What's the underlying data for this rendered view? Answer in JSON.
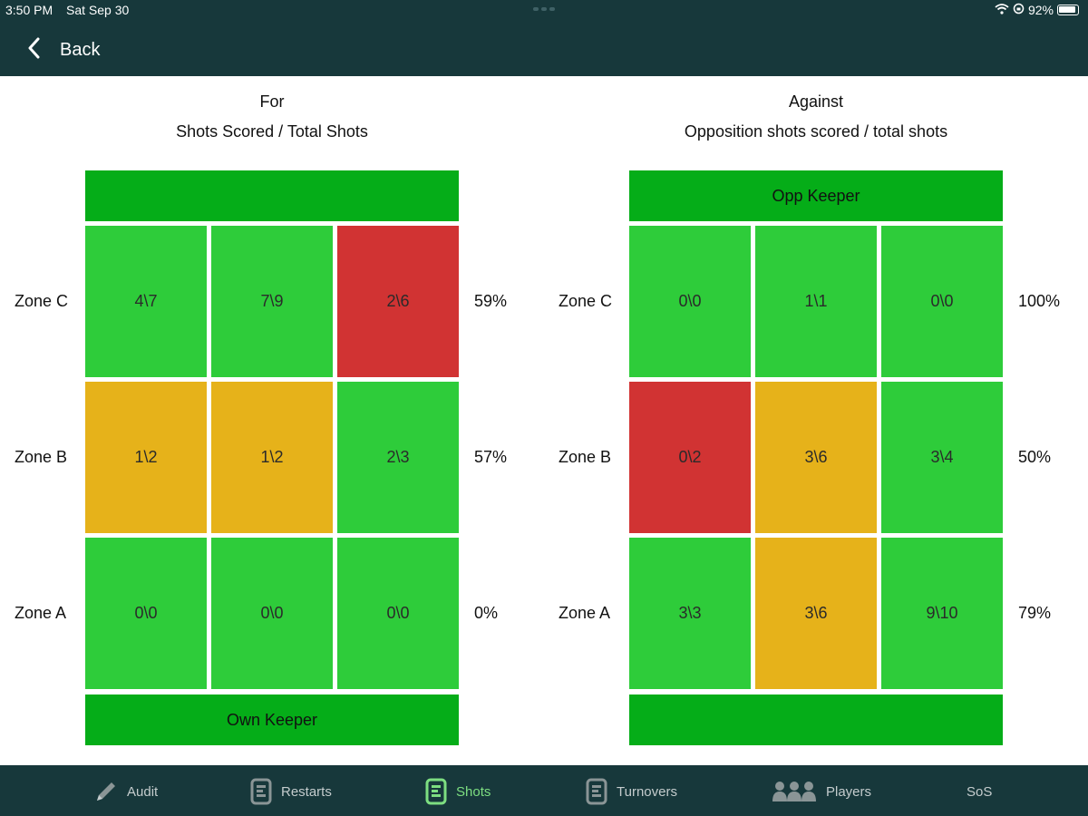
{
  "status": {
    "time": "3:50 PM",
    "date": "Sat Sep 30",
    "battery": "92%"
  },
  "nav": {
    "back_label": "Back"
  },
  "for_panel": {
    "title_line1": "For",
    "title_line2": "Shots Scored / Total Shots",
    "top_keeper": "",
    "bottom_keeper": "Own Keeper",
    "rows": [
      {
        "zone": "Zone C",
        "pct": "59%",
        "cells": [
          "4\\7",
          "7\\9",
          "2\\6"
        ],
        "colors": [
          "green",
          "green",
          "red"
        ]
      },
      {
        "zone": "Zone B",
        "pct": "57%",
        "cells": [
          "1\\2",
          "1\\2",
          "2\\3"
        ],
        "colors": [
          "amber",
          "amber",
          "green"
        ]
      },
      {
        "zone": "Zone A",
        "pct": "0%",
        "cells": [
          "0\\0",
          "0\\0",
          "0\\0"
        ],
        "colors": [
          "green",
          "green",
          "green"
        ]
      }
    ]
  },
  "against_panel": {
    "title_line1": "Against",
    "title_line2": "Opposition shots scored / total shots",
    "top_keeper": "Opp Keeper",
    "bottom_keeper": "",
    "rows": [
      {
        "zone": "Zone C",
        "pct": "100%",
        "cells": [
          "0\\0",
          "1\\1",
          "0\\0"
        ],
        "colors": [
          "green",
          "green",
          "green"
        ]
      },
      {
        "zone": "Zone B",
        "pct": "50%",
        "cells": [
          "0\\2",
          "3\\6",
          "3\\4"
        ],
        "colors": [
          "red",
          "amber",
          "green"
        ]
      },
      {
        "zone": "Zone A",
        "pct": "79%",
        "cells": [
          "3\\3",
          "3\\6",
          "9\\10"
        ],
        "colors": [
          "green",
          "amber",
          "green"
        ]
      }
    ]
  },
  "colors": {
    "green": "#2ecc3a",
    "amber": "#e6b21a",
    "red": "#d13333",
    "keeper": "#05ad18",
    "bar": "#17383b",
    "active_tab": "#7dde81"
  },
  "tabs": [
    {
      "label": "Audit",
      "icon": "pencil-icon",
      "active": false
    },
    {
      "label": "Restarts",
      "icon": "document-icon",
      "active": false
    },
    {
      "label": "Shots",
      "icon": "document-icon",
      "active": true
    },
    {
      "label": "Turnovers",
      "icon": "document-icon",
      "active": false
    },
    {
      "label": "Players",
      "icon": "people-icon",
      "active": false
    },
    {
      "label": "SoS",
      "icon": "",
      "active": false
    }
  ]
}
